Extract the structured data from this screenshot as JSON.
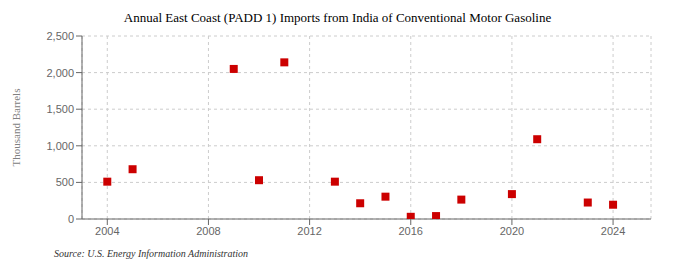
{
  "chart_data": {
    "type": "scatter",
    "title": "Annual East Coast (PADD 1) Imports from India of Conventional Motor Gasoline",
    "ylabel": "Thousand Barrels",
    "annotations": [
      "Source: U.S. Energy Information Administration"
    ],
    "x": [
      2004,
      2005,
      2009,
      2010,
      2011,
      2013,
      2014,
      2015,
      2016,
      2017,
      2018,
      2020,
      2021,
      2023,
      2024
    ],
    "values": [
      510,
      680,
      2050,
      530,
      2140,
      510,
      215,
      305,
      30,
      40,
      265,
      340,
      1090,
      225,
      195
    ],
    "color": "#cc0000",
    "marker": "square",
    "xlim": [
      2003.0,
      2025.5
    ],
    "ylim": [
      0,
      2500
    ],
    "xticks": [
      2004,
      2008,
      2012,
      2016,
      2020,
      2024
    ],
    "yticks": [
      0,
      500,
      {
        "value": 1000,
        "label": "1,000"
      },
      {
        "value": 1500,
        "label": "1,500"
      },
      {
        "value": 2000,
        "label": "2,000"
      },
      {
        "value": 2500,
        "label": "2,500"
      }
    ],
    "grid": true
  }
}
